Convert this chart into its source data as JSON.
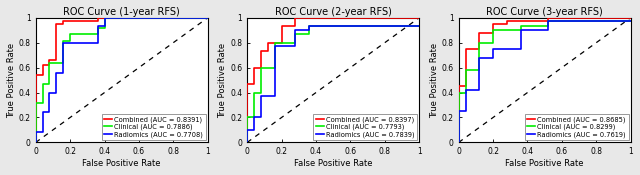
{
  "panels": [
    {
      "title": "ROC Curve (1-year RFS)",
      "curves": {
        "combined": {
          "color": "#ff0000",
          "label": "Combined (AUC = 0.8391)",
          "fpr": [
            0,
            0.0,
            0.04,
            0.04,
            0.08,
            0.08,
            0.12,
            0.12,
            0.16,
            0.16,
            0.36,
            0.36,
            1.0
          ],
          "tpr": [
            0,
            0.54,
            0.54,
            0.62,
            0.62,
            0.66,
            0.66,
            0.95,
            0.95,
            0.97,
            0.97,
            1.0,
            1.0
          ]
        },
        "clinical": {
          "color": "#00ee00",
          "label": "Clinical (AUC = 0.7886)",
          "fpr": [
            0,
            0.0,
            0.04,
            0.04,
            0.08,
            0.08,
            0.16,
            0.16,
            0.2,
            0.2,
            0.36,
            0.36,
            0.4,
            0.4,
            1.0
          ],
          "tpr": [
            0,
            0.32,
            0.32,
            0.47,
            0.47,
            0.64,
            0.64,
            0.81,
            0.81,
            0.87,
            0.87,
            0.92,
            0.92,
            1.0,
            1.0
          ]
        },
        "radiomics": {
          "color": "#0000ff",
          "label": "Radiomics (AUC = 0.7708)",
          "fpr": [
            0,
            0.0,
            0.04,
            0.04,
            0.08,
            0.08,
            0.12,
            0.12,
            0.16,
            0.16,
            0.36,
            0.36,
            0.4,
            0.4,
            1.0
          ],
          "tpr": [
            0,
            0.08,
            0.08,
            0.24,
            0.24,
            0.4,
            0.4,
            0.56,
            0.56,
            0.8,
            0.8,
            0.93,
            0.93,
            1.0,
            1.0
          ]
        }
      }
    },
    {
      "title": "ROC Curve (2-year RFS)",
      "curves": {
        "combined": {
          "color": "#ff0000",
          "label": "Combined (AUC = 0.8397)",
          "fpr": [
            0,
            0.0,
            0.04,
            0.04,
            0.08,
            0.08,
            0.12,
            0.12,
            0.2,
            0.2,
            0.28,
            0.28,
            0.36,
            0.36,
            1.0
          ],
          "tpr": [
            0,
            0.47,
            0.47,
            0.6,
            0.6,
            0.73,
            0.73,
            0.8,
            0.8,
            0.93,
            0.93,
            1.0,
            1.0,
            1.0,
            1.0
          ]
        },
        "clinical": {
          "color": "#00ee00",
          "label": "Clinical (AUC = 0.7793)",
          "fpr": [
            0,
            0.0,
            0.04,
            0.04,
            0.08,
            0.08,
            0.16,
            0.16,
            0.28,
            0.28,
            0.36,
            0.36,
            1.0
          ],
          "tpr": [
            0,
            0.2,
            0.2,
            0.4,
            0.4,
            0.6,
            0.6,
            0.8,
            0.8,
            0.87,
            0.87,
            0.93,
            0.93
          ]
        },
        "radiomics": {
          "color": "#0000ff",
          "label": "Radiomics (AUC = 0.7839)",
          "fpr": [
            0,
            0.0,
            0.04,
            0.04,
            0.08,
            0.08,
            0.16,
            0.16,
            0.28,
            0.28,
            0.36,
            0.36,
            1.0
          ],
          "tpr": [
            0,
            0.1,
            0.1,
            0.2,
            0.2,
            0.37,
            0.37,
            0.77,
            0.77,
            0.9,
            0.9,
            0.93,
            0.93
          ]
        }
      }
    },
    {
      "title": "ROC Curve (3-year RFS)",
      "curves": {
        "combined": {
          "color": "#ff0000",
          "label": "Combined (AUC = 0.8685)",
          "fpr": [
            0,
            0.0,
            0.04,
            0.04,
            0.12,
            0.12,
            0.2,
            0.2,
            0.28,
            0.28,
            0.52,
            0.52,
            1.0
          ],
          "tpr": [
            0,
            0.45,
            0.45,
            0.75,
            0.75,
            0.88,
            0.88,
            0.95,
            0.95,
            0.97,
            0.97,
            1.0,
            1.0
          ]
        },
        "clinical": {
          "color": "#00ee00",
          "label": "Clinical (AUC = 0.8299)",
          "fpr": [
            0,
            0.0,
            0.04,
            0.04,
            0.12,
            0.12,
            0.2,
            0.2,
            0.36,
            0.36,
            0.52,
            0.52,
            1.0
          ],
          "tpr": [
            0,
            0.4,
            0.4,
            0.58,
            0.58,
            0.8,
            0.8,
            0.9,
            0.9,
            0.93,
            0.93,
            0.97,
            0.97
          ]
        },
        "radiomics": {
          "color": "#0000ff",
          "label": "Radiomics (AUC = 0.7619)",
          "fpr": [
            0,
            0.0,
            0.04,
            0.04,
            0.12,
            0.12,
            0.2,
            0.2,
            0.36,
            0.36,
            0.52,
            0.52,
            1.0
          ],
          "tpr": [
            0,
            0.25,
            0.25,
            0.42,
            0.42,
            0.68,
            0.68,
            0.75,
            0.75,
            0.9,
            0.9,
            0.97,
            0.97
          ]
        }
      }
    }
  ],
  "xlabel": "False Positive Rate",
  "ylabel": "True Positive Rate",
  "diagonal_color": "black",
  "linewidth": 1.2,
  "legend_fontsize": 4.8,
  "axis_label_fontsize": 6.0,
  "title_fontsize": 7.0,
  "tick_fontsize": 5.5,
  "figure_facecolor": "#e8e8e8",
  "axes_facecolor": "#ffffff"
}
